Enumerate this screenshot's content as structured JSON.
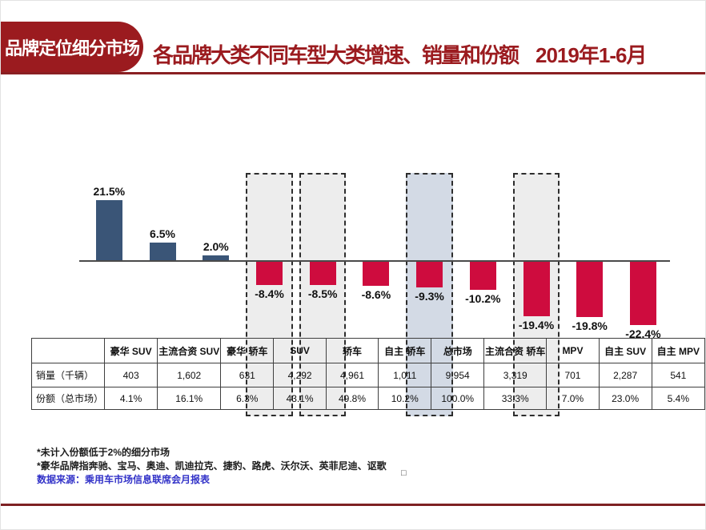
{
  "page": {
    "accent_red": "#9B1B1F",
    "title_rule_color": "#8A1F22",
    "bottom_rule_color": "#7E2123",
    "background": "#FFFFFF"
  },
  "header": {
    "badge": "品牌定位细分市场",
    "title": "各品牌大类不同车型大类增速、销量和份额",
    "period": "2019年1-6月"
  },
  "chart_data": {
    "type": "bar",
    "title": "各品牌大类不同车型大类增速、销量和份额 2019年1-6月",
    "unit": "%",
    "categories": [
      "豪华 SUV",
      "主流合资 SUV",
      "豪华 轿车",
      "SUV",
      "轿车",
      "自主 轿车",
      "总市场",
      "主流合资 轿车",
      "MPV",
      "自主 SUV",
      "自主 MPV"
    ],
    "values": [
      21.5,
      6.5,
      2.0,
      -8.4,
      -8.5,
      -8.6,
      -9.3,
      -10.2,
      -19.4,
      -19.8,
      -22.4
    ],
    "value_labels": [
      "21.5%",
      "6.5%",
      "2.0%",
      "-8.4%",
      "-8.5%",
      "-8.6%",
      "-9.3%",
      "-10.2%",
      "-19.4%",
      "-19.8%",
      "-22.4%"
    ],
    "baseline": 0,
    "y_axis_visible": false,
    "grid": false,
    "legend": false,
    "highlights": [
      {
        "category": "SUV",
        "style": "gray"
      },
      {
        "category": "轿车",
        "style": "gray"
      },
      {
        "category": "总市场",
        "style": "blue"
      },
      {
        "category": "MPV",
        "style": "gray"
      }
    ],
    "colors": {
      "positive_bar": "#3A5577",
      "negative_bar": "#CE0C3E",
      "highlight_gray": "#EDEDED",
      "highlight_blue": "#D3DAE5"
    }
  },
  "table": {
    "corner_label": "",
    "columns": [
      "豪华 SUV",
      "主流合资 SUV",
      "豪华 轿车",
      "SUV",
      "轿车",
      "自主 轿车",
      "总市场",
      "主流合资 轿车",
      "MPV",
      "自主 SUV",
      "自主 MPV"
    ],
    "rows": [
      {
        "label": "销量（千辆）",
        "values": [
          "403",
          "1,602",
          "631",
          "4,292",
          "4,961",
          "1,011",
          "9,954",
          "3,319",
          "701",
          "2,287",
          "541"
        ]
      },
      {
        "label": "份额（总市场）",
        "values": [
          "4.1%",
          "16.1%",
          "6.3%",
          "43.1%",
          "49.8%",
          "10.2%",
          "100.0%",
          "33.3%",
          "7.0%",
          "23.0%",
          "5.4%"
        ]
      }
    ]
  },
  "footnotes": {
    "note1": "*未计入份额低于2%的细分市场",
    "note2": "*豪华品牌指奔驰、宝马、奥迪、凯迪拉克、捷豹、路虎、沃尔沃、英菲尼迪、讴歌",
    "source": "数据来源：乘用车市场信息联席会月报表"
  },
  "misc": {
    "box_glyph": "□"
  }
}
